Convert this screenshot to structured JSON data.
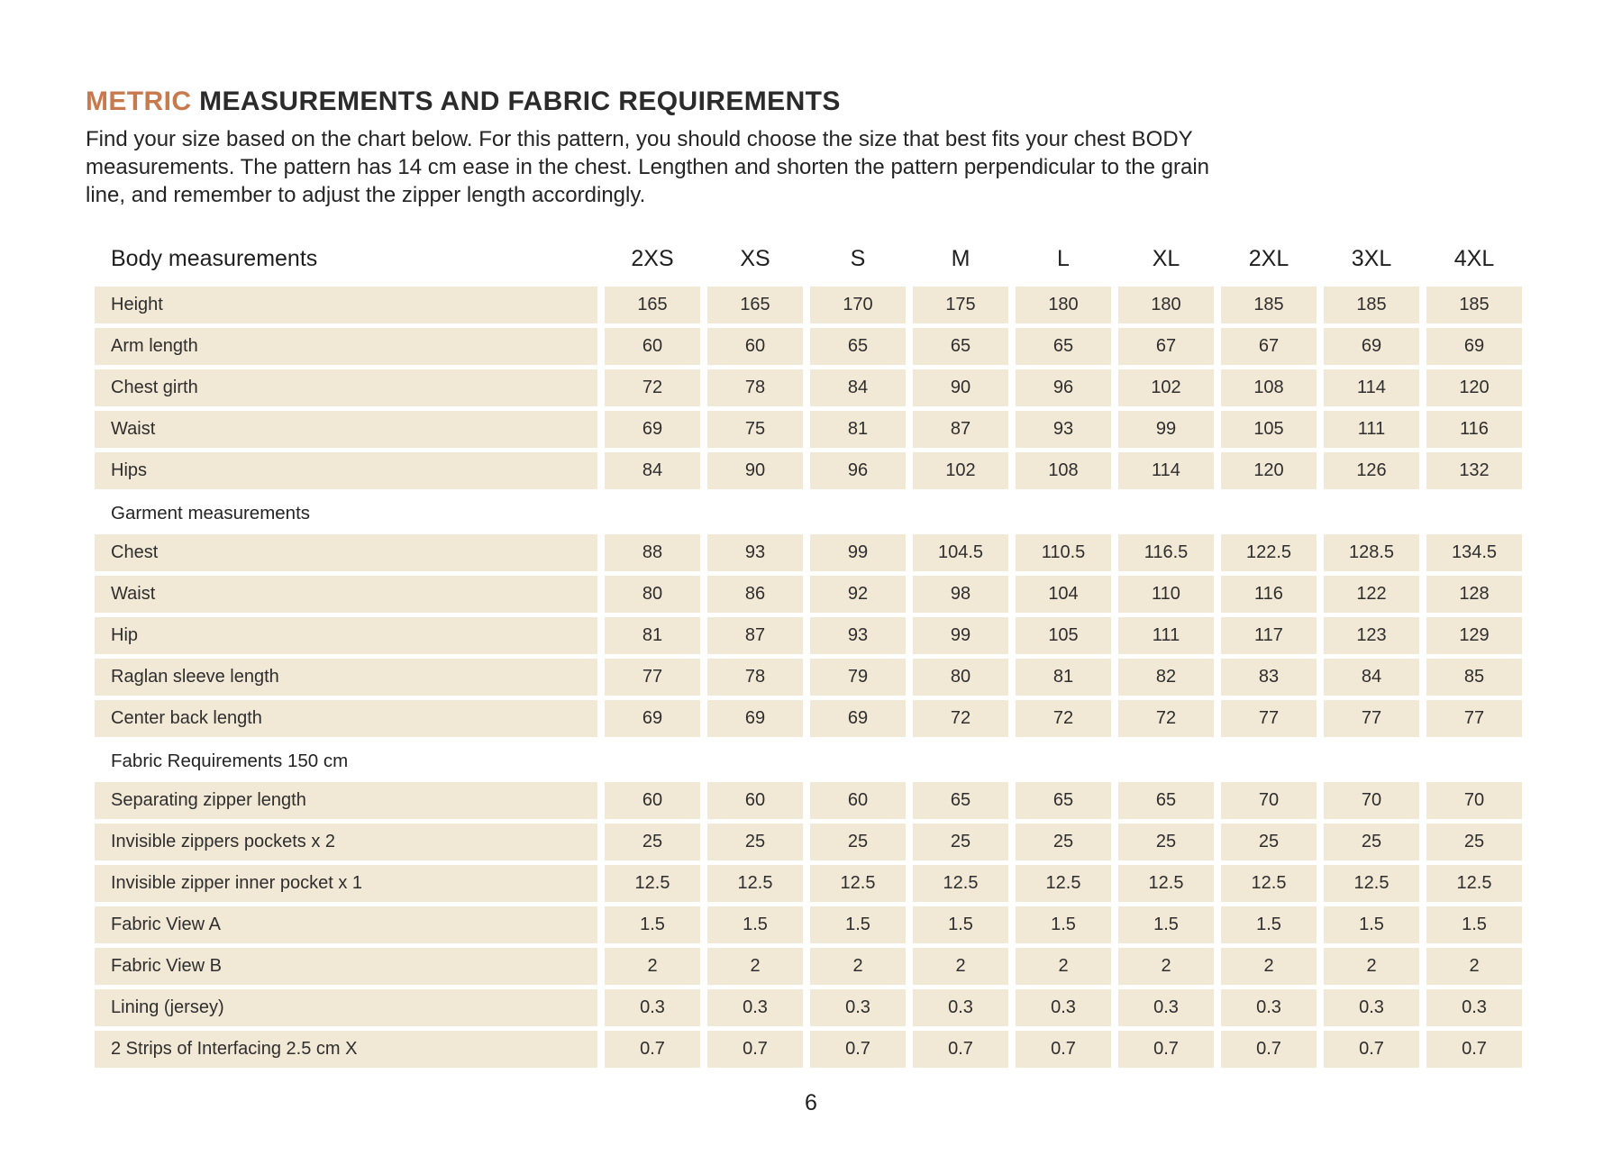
{
  "header": {
    "title_highlight": "METRIC",
    "title_rest": " MEASUREMENTS AND FABRIC REQUIREMENTS",
    "intro_lines": [
      "Find your size based on the chart below. For this pattern, you should choose the size that best fits your chest BODY",
      "measurements. The pattern has 14 cm ease in the chest. Lengthen and shorten the pattern perpendicular to the grain",
      "line, and remember to adjust the zipper length accordingly."
    ]
  },
  "table": {
    "header_label": "Body measurements",
    "sizes": [
      "2XS",
      "XS",
      "S",
      "M",
      "L",
      "XL",
      "2XL",
      "3XL",
      "4XL"
    ],
    "sections": [
      {
        "label": "",
        "rows": [
          {
            "label": "Height",
            "values": [
              "165",
              "165",
              "170",
              "175",
              "180",
              "180",
              "185",
              "185",
              "185"
            ]
          },
          {
            "label": "Arm length",
            "values": [
              "60",
              "60",
              "65",
              "65",
              "65",
              "67",
              "67",
              "69",
              "69"
            ]
          },
          {
            "label": "Chest girth",
            "values": [
              "72",
              "78",
              "84",
              "90",
              "96",
              "102",
              "108",
              "114",
              "120"
            ]
          },
          {
            "label": "Waist",
            "values": [
              "69",
              "75",
              "81",
              "87",
              "93",
              "99",
              "105",
              "111",
              "116"
            ]
          },
          {
            "label": "Hips",
            "values": [
              "84",
              "90",
              "96",
              "102",
              "108",
              "114",
              "120",
              "126",
              "132"
            ]
          }
        ]
      },
      {
        "label": "Garment measurements",
        "rows": [
          {
            "label": "Chest",
            "values": [
              "88",
              "93",
              "99",
              "104.5",
              "110.5",
              "116.5",
              "122.5",
              "128.5",
              "134.5"
            ]
          },
          {
            "label": "Waist",
            "values": [
              "80",
              "86",
              "92",
              "98",
              "104",
              "110",
              "116",
              "122",
              "128"
            ]
          },
          {
            "label": "Hip",
            "values": [
              "81",
              "87",
              "93",
              "99",
              "105",
              "111",
              "117",
              "123",
              "129"
            ]
          },
          {
            "label": "Raglan sleeve length",
            "values": [
              "77",
              "78",
              "79",
              "80",
              "81",
              "82",
              "83",
              "84",
              "85"
            ]
          },
          {
            "label": "Center back length",
            "values": [
              "69",
              "69",
              "69",
              "72",
              "72",
              "72",
              "77",
              "77",
              "77"
            ]
          }
        ]
      },
      {
        "label": "Fabric Requirements 150 cm",
        "rows": [
          {
            "label": "Separating zipper length",
            "values": [
              "60",
              "60",
              "60",
              "65",
              "65",
              "65",
              "70",
              "70",
              "70"
            ]
          },
          {
            "label": "Invisible zippers pockets x 2",
            "values": [
              "25",
              "25",
              "25",
              "25",
              "25",
              "25",
              "25",
              "25",
              "25"
            ]
          },
          {
            "label": "Invisible zipper inner pocket x 1",
            "values": [
              "12.5",
              "12.5",
              "12.5",
              "12.5",
              "12.5",
              "12.5",
              "12.5",
              "12.5",
              "12.5"
            ]
          },
          {
            "label": "Fabric View A",
            "values": [
              "1.5",
              "1.5",
              "1.5",
              "1.5",
              "1.5",
              "1.5",
              "1.5",
              "1.5",
              "1.5"
            ]
          },
          {
            "label": "Fabric View B",
            "values": [
              "2",
              "2",
              "2",
              "2",
              "2",
              "2",
              "2",
              "2",
              "2"
            ]
          },
          {
            "label": "Lining (jersey)",
            "values": [
              "0.3",
              "0.3",
              "0.3",
              "0.3",
              "0.3",
              "0.3",
              "0.3",
              "0.3",
              "0.3"
            ]
          },
          {
            "label": "2 Strips of Interfacing  2.5 cm X",
            "values": [
              "0.7",
              "0.7",
              "0.7",
              "0.7",
              "0.7",
              "0.7",
              "0.7",
              "0.7",
              "0.7"
            ]
          }
        ]
      }
    ]
  },
  "footer": {
    "page_number": "6"
  },
  "colors": {
    "accent": "#C87A4F",
    "row_background": "#F2E8D6",
    "text": "#2E2E2E"
  }
}
